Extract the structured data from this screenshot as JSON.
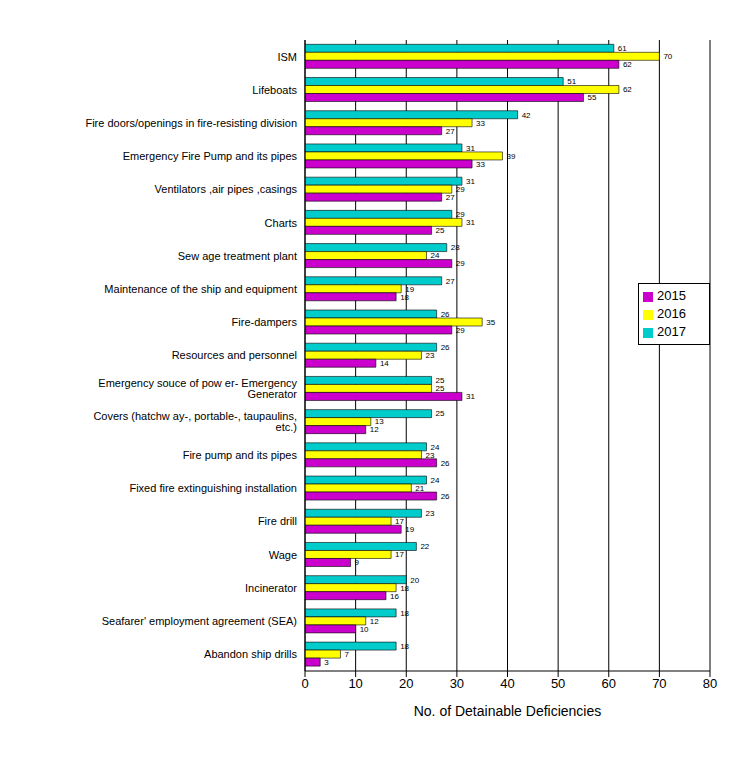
{
  "chart_data": {
    "type": "bar",
    "orientation": "horizontal",
    "categories": [
      "ISM",
      "Lifeboats",
      "Fire doors/openings in fire-resisting division",
      "Emergency Fire Pump and its pipes",
      "Ventilators ,air pipes ,casings",
      "Charts",
      "Sew age treatment plant",
      "Maintenance of the ship and equipment",
      "Fire-dampers",
      "Resources and personnel",
      "Emergency souce of pow er- Emergency Generator",
      "Covers (hatchw ay-, portable-, taupaulins, etc.)",
      "Fire pump and its pipes",
      "Fixed fire extinguishing installation",
      "Fire drill",
      "Wage",
      "Incinerator",
      "Seafarer' employment agreement (SEA)",
      "Abandon ship drills"
    ],
    "series": [
      {
        "name": "2017",
        "color": "#00cccc",
        "values": [
          61,
          51,
          42,
          31,
          31,
          29,
          28,
          27,
          26,
          26,
          25,
          25,
          24,
          24,
          23,
          22,
          20,
          18,
          18
        ]
      },
      {
        "name": "2016",
        "color": "#ffff00",
        "values": [
          70,
          62,
          33,
          39,
          29,
          31,
          24,
          19,
          35,
          23,
          25,
          13,
          23,
          21,
          17,
          17,
          18,
          12,
          7
        ]
      },
      {
        "name": "2015",
        "color": "#cc00cc",
        "values": [
          62,
          55,
          27,
          33,
          27,
          25,
          29,
          18,
          29,
          14,
          31,
          12,
          26,
          26,
          19,
          9,
          16,
          10,
          3
        ]
      }
    ],
    "x_label": "No. of Detainable Deficiencies",
    "xlim": [
      0,
      80
    ],
    "xticks": [
      0,
      10,
      20,
      30,
      40,
      50,
      60,
      70,
      80
    ],
    "grid": true,
    "legend": "right",
    "data_labels": true
  }
}
